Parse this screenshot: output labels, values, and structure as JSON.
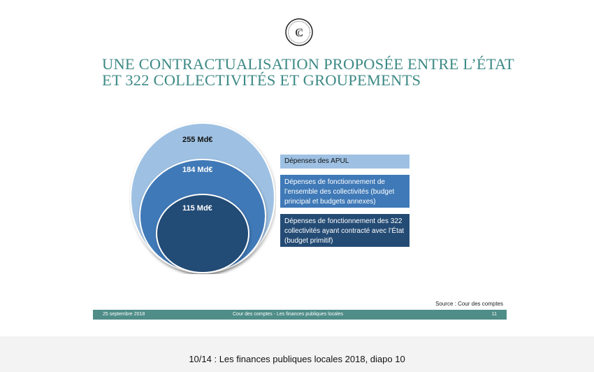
{
  "slide": {
    "title_line1": "UNE CONTRACTUALISATION PROPOSÉE ENTRE L’ÉTAT",
    "title_line2": "ET 322 COLLECTIVITÉS ET GROUPEMENTS",
    "logo_letters": "CC"
  },
  "diagram": {
    "circles": [
      {
        "label": "255 Md€",
        "color": "#9ec1e3"
      },
      {
        "label": "184 Md€",
        "color": "#3f79b7"
      },
      {
        "label": "115 Md€",
        "color": "#244b74"
      }
    ],
    "legend": [
      {
        "text": "Dépenses des APUL"
      },
      {
        "text": "Dépenses de fonctionnement de l’ensemble des collectivités (budget principal et budgets annexes)"
      },
      {
        "text": "Dépenses de fonctionnement des 322 collectivités ayant contracté avec l’État (budget primitif)"
      }
    ]
  },
  "source": "Source : Cour des comptes",
  "footer": {
    "date": "25 septembre 2018",
    "center": "Cour des comptes  - Les finances publiques locales",
    "page": "11"
  },
  "caption": "10/14 : Les finances publiques locales 2018, diapo 10"
}
